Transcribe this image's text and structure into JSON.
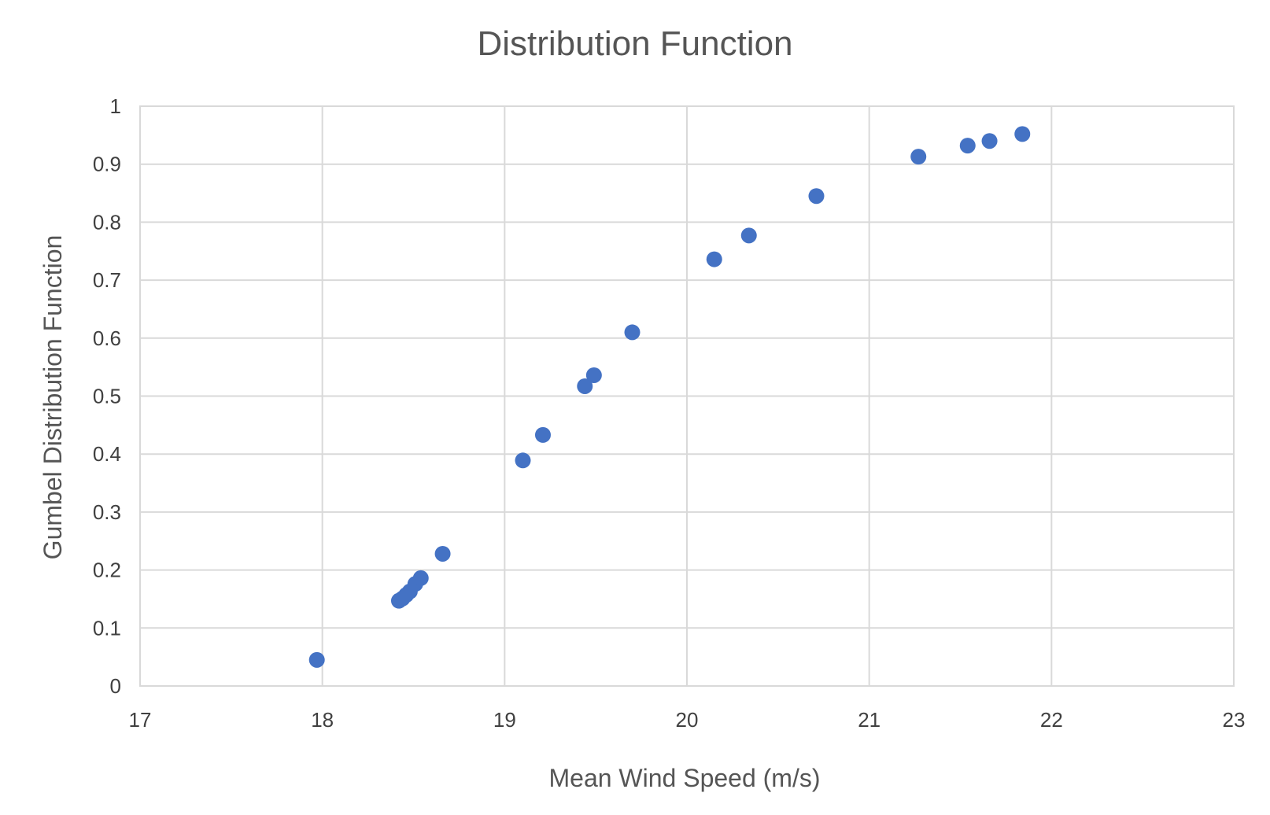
{
  "chart_data": {
    "type": "scatter",
    "title": "Distribution Function",
    "xlabel": "Mean Wind Speed (m/s)",
    "ylabel": "Gumbel Distribution Function",
    "xlim": [
      17,
      23
    ],
    "ylim": [
      0,
      1
    ],
    "x_ticks": [
      17,
      18,
      19,
      20,
      21,
      22,
      23
    ],
    "y_ticks": [
      0,
      0.1,
      0.2,
      0.3,
      0.4,
      0.5,
      0.6,
      0.7,
      0.8,
      0.9,
      1
    ],
    "grid": true,
    "legend": "none",
    "marker_color": "#4472C4",
    "series": [
      {
        "points": [
          {
            "x": 17.97,
            "y": 0.045
          },
          {
            "x": 18.42,
            "y": 0.147
          },
          {
            "x": 18.44,
            "y": 0.151
          },
          {
            "x": 18.46,
            "y": 0.157
          },
          {
            "x": 18.48,
            "y": 0.163
          },
          {
            "x": 18.51,
            "y": 0.176
          },
          {
            "x": 18.54,
            "y": 0.186
          },
          {
            "x": 18.66,
            "y": 0.228
          },
          {
            "x": 19.1,
            "y": 0.389
          },
          {
            "x": 19.21,
            "y": 0.433
          },
          {
            "x": 19.44,
            "y": 0.517
          },
          {
            "x": 19.49,
            "y": 0.536
          },
          {
            "x": 19.7,
            "y": 0.61
          },
          {
            "x": 20.15,
            "y": 0.736
          },
          {
            "x": 20.34,
            "y": 0.777
          },
          {
            "x": 20.71,
            "y": 0.845
          },
          {
            "x": 21.27,
            "y": 0.913
          },
          {
            "x": 21.54,
            "y": 0.932
          },
          {
            "x": 21.66,
            "y": 0.94
          },
          {
            "x": 21.84,
            "y": 0.952
          }
        ]
      }
    ]
  }
}
